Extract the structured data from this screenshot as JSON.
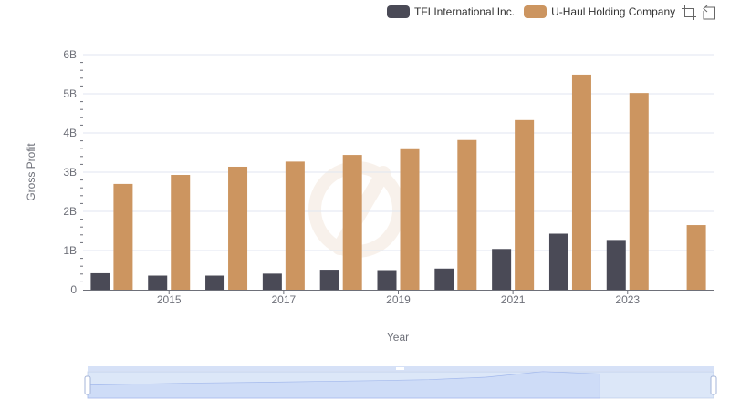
{
  "legend": {
    "items": [
      {
        "label": "TFI International Inc.",
        "color": "#4a4a56"
      },
      {
        "label": "U-Haul Holding Company",
        "color": "#cc9560"
      }
    ]
  },
  "toolbox": {
    "icons": [
      "data-zoom-icon",
      "restore-icon"
    ]
  },
  "watermark_icon": "brand-watermark-icon",
  "chart_data": {
    "type": "bar",
    "categories": [
      "2014",
      "2015",
      "2016",
      "2017",
      "2018",
      "2019",
      "2020",
      "2021",
      "2022",
      "2023",
      "2024"
    ],
    "x_tick_labels": [
      "",
      "2015",
      "",
      "2017",
      "",
      "2019",
      "",
      "2021",
      "",
      "2023",
      ""
    ],
    "series": [
      {
        "name": "TFI International Inc.",
        "color": "#4a4a56",
        "values": [
          0.42,
          0.36,
          0.36,
          0.41,
          0.51,
          0.5,
          0.54,
          1.04,
          1.43,
          1.27,
          null
        ]
      },
      {
        "name": "U-Haul Holding Company",
        "color": "#cc9560",
        "values": [
          2.7,
          2.93,
          3.14,
          3.27,
          3.44,
          3.61,
          3.82,
          4.33,
          5.49,
          5.02,
          1.65
        ]
      }
    ],
    "xlabel": "Year",
    "ylabel": "Gross Profit",
    "ylim": [
      0,
      6
    ],
    "y_tick_labels": [
      "0",
      "1B",
      "2B",
      "3B",
      "4B",
      "5B",
      "6B"
    ],
    "grid": true,
    "legend_position": "top-right",
    "data_zoom": {
      "range": [
        0,
        100
      ]
    }
  }
}
